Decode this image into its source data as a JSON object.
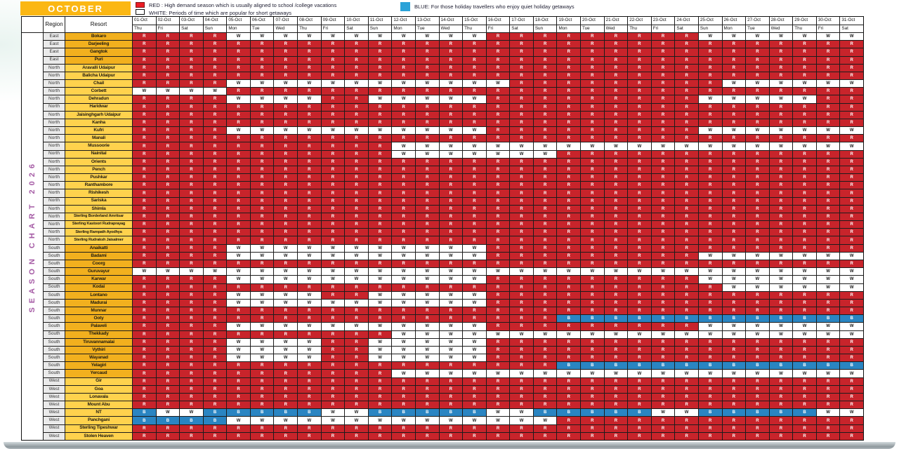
{
  "title": "OCTOBER",
  "side_label": "SEASON CHART 2026",
  "legend": {
    "red": "RED : High demand season which is usually aligned to school /college vacations",
    "white": "WHITE: Periods of time which are popular for short getaways",
    "blue": "BLUE: For those holiday travellers who enjoy quiet holiday getaways"
  },
  "table": {
    "region_header": "Region",
    "resort_header": "Resort"
  },
  "colors": {
    "red_cell": "#C8242B",
    "blue_cell": "#2A85C2",
    "gold_dark": "#F2B01E",
    "gold_light": "#FFD24D",
    "orange_title": "#FBB713",
    "purple_side_text": "#A55BA5",
    "legend_red_square": "#EB1C24",
    "legend_blue_square": "#2BA2D8"
  },
  "chart_data": {
    "type": "heatmap",
    "title": "SEASON CHART 2026 — OCTOBER",
    "legend_codes": {
      "R": "red",
      "W": "white",
      "B": "blue"
    },
    "columns": [
      {
        "date": "01-Oct",
        "day": "Thu"
      },
      {
        "date": "02-Oct",
        "day": "Fri"
      },
      {
        "date": "03-Oct",
        "day": "Sat"
      },
      {
        "date": "04-Oct",
        "day": "Sun"
      },
      {
        "date": "05-Oct",
        "day": "Mon"
      },
      {
        "date": "06-Oct",
        "day": "Tue"
      },
      {
        "date": "07-Oct",
        "day": "Wed"
      },
      {
        "date": "08-Oct",
        "day": "Thu"
      },
      {
        "date": "09-Oct",
        "day": "Fri"
      },
      {
        "date": "10-Oct",
        "day": "Sat"
      },
      {
        "date": "11-Oct",
        "day": "Sun"
      },
      {
        "date": "12-Oct",
        "day": "Mon"
      },
      {
        "date": "13-Oct",
        "day": "Tue"
      },
      {
        "date": "14-Oct",
        "day": "Wed"
      },
      {
        "date": "15-Oct",
        "day": "Thu"
      },
      {
        "date": "16-Oct",
        "day": "Fri"
      },
      {
        "date": "17-Oct",
        "day": "Sat"
      },
      {
        "date": "18-Oct",
        "day": "Sun"
      },
      {
        "date": "19-Oct",
        "day": "Mon"
      },
      {
        "date": "20-Oct",
        "day": "Tue"
      },
      {
        "date": "21-Oct",
        "day": "Wed"
      },
      {
        "date": "22-Oct",
        "day": "Thu"
      },
      {
        "date": "23-Oct",
        "day": "Fri"
      },
      {
        "date": "24-Oct",
        "day": "Sat"
      },
      {
        "date": "25-Oct",
        "day": "Sun"
      },
      {
        "date": "26-Oct",
        "day": "Mon"
      },
      {
        "date": "27-Oct",
        "day": "Tue"
      },
      {
        "date": "28-Oct",
        "day": "Wed"
      },
      {
        "date": "29-Oct",
        "day": "Thu"
      },
      {
        "date": "30-Oct",
        "day": "Fri"
      },
      {
        "date": "31-Oct",
        "day": "Sat"
      }
    ],
    "rows": [
      {
        "region": "East",
        "resort": "Bokaro",
        "values": "RRRRWWWWWWWWWWWRRRRRRRRRWWWWWWW"
      },
      {
        "region": "East",
        "resort": "Darjeeling",
        "values": "RRRRRRRRRRRRRRRRRRRRRRRRRRRRRRR"
      },
      {
        "region": "East",
        "resort": "Gangtok",
        "values": "RRRRRRRRRRRRRRRRRRRRRRRRRRRRRRR"
      },
      {
        "region": "East",
        "resort": "Puri",
        "values": "RRRRRRRRRRRRRRRRRRRRRRRRRRRRRRR"
      },
      {
        "region": "North",
        "resort": "Aravalli Udaipur",
        "values": "RRRRRRRRRRRRRRRRRRRRRRRRRRRRRRR"
      },
      {
        "region": "North",
        "resort": "Balicha Udaipur",
        "values": "RRRRRRRRRRRRRRRRRRRRRRRRRRRRRRR"
      },
      {
        "region": "North",
        "resort": "Chail",
        "values": "RRRRWWWWWWWWWWWWRRRRRRRRRWWWWWW"
      },
      {
        "region": "North",
        "resort": "Corbett",
        "values": "WWWWRRRRRRRRRRRRRRRRRRRRRRRRRRR"
      },
      {
        "region": "North",
        "resort": "Dehradun",
        "values": "RRRRWWWWRRWWWWWRRRRRRRRRWWWWWRR"
      },
      {
        "region": "North",
        "resort": "Haridwar",
        "values": "RRRRRRRRRRRRRRRRRRRRRRRRRRRRRRR"
      },
      {
        "region": "North",
        "resort": "Jaisinghgarh Udaipur",
        "values": "RRRRRRRRRRRRRRRRRRRRRRRRRRRRRRR"
      },
      {
        "region": "North",
        "resort": "Kanha",
        "values": "RRRRRRRRRRRRRRRRRRRRRRRRRRRRRRR"
      },
      {
        "region": "North",
        "resort": "Kufri",
        "values": "RRRRWWWWWWWWWWWRRRRRRRRRWWWWWWW"
      },
      {
        "region": "North",
        "resort": "Manali",
        "values": "RRRRRRRRRRRRRRRRRRRRRRRRRRRRRRR"
      },
      {
        "region": "North",
        "resort": "Mussoorie",
        "values": "RRRRRRRRRRRWWWWWWWWWWWWWWWWWWWW"
      },
      {
        "region": "North",
        "resort": "Nainital",
        "values": "RRRRRRRRRRRWWWWWWWRRRRRRRRRRRRR"
      },
      {
        "region": "North",
        "resort": "Orients",
        "values": "RRRRRRRRRRRRRRRRRRRRRRRRRRRRRRR"
      },
      {
        "region": "North",
        "resort": "Pench",
        "values": "RRRRRRRRRRRRRRRRRRRRRRRRRRRRRRR"
      },
      {
        "region": "North",
        "resort": "Pushkar",
        "values": "RRRRRRRRRRRRRRRRRRRRRRRRRRRRRRR"
      },
      {
        "region": "North",
        "resort": "Ranthambore",
        "values": "RRRRRRRRRRRRRRRRRRRRRRRRRRRRRRR"
      },
      {
        "region": "North",
        "resort": "Rishikesh",
        "values": "RRRRRRRRRRRRRRRRRRRRRRRRRRRRRRR"
      },
      {
        "region": "North",
        "resort": "Sariska",
        "values": "RRRRRRRRRRRRRRRRRRRRRRRRRRRRRRR"
      },
      {
        "region": "North",
        "resort": "Shimla",
        "values": "RRRRRRRRRRRRRRRRRRRRRRRRRRRRRRR"
      },
      {
        "region": "North",
        "resort": "Sterling Borderland Amritsar",
        "values": "RRRRRRRRRRRRRRRRRRRRRRRRRRRRRRR"
      },
      {
        "region": "North",
        "resort": "Sterling Kastoori Rudraprayag",
        "values": "RRRRRRRRRRRRRRRRRRRRRRRRRRRRRRR"
      },
      {
        "region": "North",
        "resort": "Sterling Rampath Ayodhya",
        "values": "RRRRRRRRRRRRRRRRRRRRRRRRRRRRRRR"
      },
      {
        "region": "North",
        "resort": "Sterling Rudraksh Jaisalmer",
        "values": "RRRRRRRRRRRRRRRRRRRRRRRRRRRRRRR"
      },
      {
        "region": "South",
        "resort": "Anaikatti",
        "values": "RRRRWWWWWWWWWWWRRRRRRRRRRRRRRRR"
      },
      {
        "region": "South",
        "resort": "Badami",
        "values": "RRRRWWWWWWWWWWWRRRRRRRRRWWWWWWW"
      },
      {
        "region": "South",
        "resort": "Coorg",
        "values": "RRRRRRRRRRRRRRRRRRRRRRRRRRRRRRR"
      },
      {
        "region": "South",
        "resort": "Guruvayur",
        "values": "WWWWWWWWWWWWWWWWWWWWWWWWWWWWWWW"
      },
      {
        "region": "South",
        "resort": "Karwar",
        "values": "RRRRWWWWWWWWWWWRRRRRRRRRWWWWWWW"
      },
      {
        "region": "South",
        "resort": "Kodai",
        "values": "RRRRRRRRRRRRRRRRRRRRRRRRRWWWWWW"
      },
      {
        "region": "South",
        "resort": "Lontano",
        "values": "RRRRWWWWRRWWWWWRRRRRRRRRRRRRRRR"
      },
      {
        "region": "South",
        "resort": "Madurai",
        "values": "RRRRWWWWWWWWWWWRRRRRRRRRRRRRRRR"
      },
      {
        "region": "South",
        "resort": "Munnar",
        "values": "RRRRRRRRRRRRRRRRRRRRRRRRRRRRRRR"
      },
      {
        "region": "South",
        "resort": "Ooty",
        "values": "RRRRRRRRRRRRRRRRRRBBBBBBBBBBBBB"
      },
      {
        "region": "South",
        "resort": "Palaveli",
        "values": "RRRRWWWWWWWWWWWRRRRRRRRRWWWWWWW"
      },
      {
        "region": "South",
        "resort": "Thekkady",
        "values": "RRRRRRRRRRRWWWWWWWWWWWWWWWWWWWW"
      },
      {
        "region": "South",
        "resort": "Tiruvannamalai",
        "values": "RRRRWWWWRRWWWWWRRRRRRRRRRRRRRRR"
      },
      {
        "region": "South",
        "resort": "Vythiri",
        "values": "RRRRWWWWRRWWWWWRRRRRRRRRRRRRRRR"
      },
      {
        "region": "South",
        "resort": "Wayanad",
        "values": "RRRRWWWWRRWWWWWRRRRRRRRRRRRRRRR"
      },
      {
        "region": "South",
        "resort": "Yelagiri",
        "values": "RRRRRRRRRRRRRRRRRRBBBBBBBBBBBBB"
      },
      {
        "region": "South",
        "resort": "Yercaud",
        "values": "RRRRRRRRRRRWWWWWWWWWWWWWWWWWWWW"
      },
      {
        "region": "West",
        "resort": "Gir",
        "values": "RRRRRRRRRRRRRRRRRRRRRRRRRRRRRRR"
      },
      {
        "region": "West",
        "resort": "Goa",
        "values": "RRRRRRRRRRRRRRRRRRRRRRRRRRRRRRR"
      },
      {
        "region": "West",
        "resort": "Lonavala",
        "values": "RRRRRRRRRRRRRRRRRRRRRRRRRRRRRRR"
      },
      {
        "region": "West",
        "resort": "Mount Abu",
        "values": "RRRRRRRRRRRRRRRRRRRRRRRRRRRRRRR"
      },
      {
        "region": "West",
        "resort": "NT",
        "values": "BWWBBBBBWWBBBBBWWBBBBBWWBBBBBWW"
      },
      {
        "region": "West",
        "resort": "Panchgani",
        "values": "BBBBWWWWWWWWWWWWWWRRRRRRRRRRRRR"
      },
      {
        "region": "West",
        "resort": "Sterling Tipeshwar",
        "values": "RRRRRRRRRRRRRRRRRRRRRRRRRRRRRRR"
      },
      {
        "region": "West",
        "resort": "Stolen Heaven",
        "values": "RRRRRRRRRRRRRRRRRRRRRRRRRRRRRRR"
      }
    ]
  }
}
